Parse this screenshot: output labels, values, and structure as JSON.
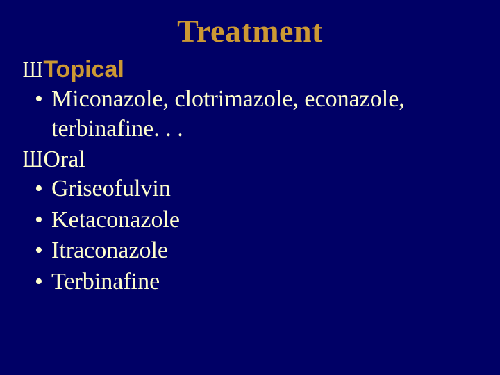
{
  "slide": {
    "background_color": "#000066",
    "title": {
      "text": "Treatment",
      "color": "#cc9933",
      "font_family": "Times New Roman",
      "font_weight": "bold",
      "font_size_pt": 34
    },
    "sections": [
      {
        "marker_glyph": "Ш",
        "marker_color": "#ffffcc",
        "heading_text": "Topical",
        "heading_color": "#cc9933",
        "heading_font_family": "Comic Sans MS",
        "heading_font_weight": "bold",
        "heading_font_size_pt": 25,
        "bullets": [
          "Miconazole, clotrimazole, econazole, terbinafine. . ."
        ]
      },
      {
        "marker_glyph": "Ш",
        "marker_color": "#ffffcc",
        "heading_text": "Oral",
        "heading_color": "#ffffcc",
        "heading_font_family": "Times New Roman",
        "heading_font_weight": "normal",
        "heading_font_size_pt": 25,
        "bullets": [
          "Griseofulvin",
          "Ketaconazole",
          "Itraconazole",
          "Terbinafine"
        ]
      }
    ],
    "body_text_color": "#ffffcc",
    "body_font_family": "Times New Roman",
    "body_font_size_pt": 25
  }
}
